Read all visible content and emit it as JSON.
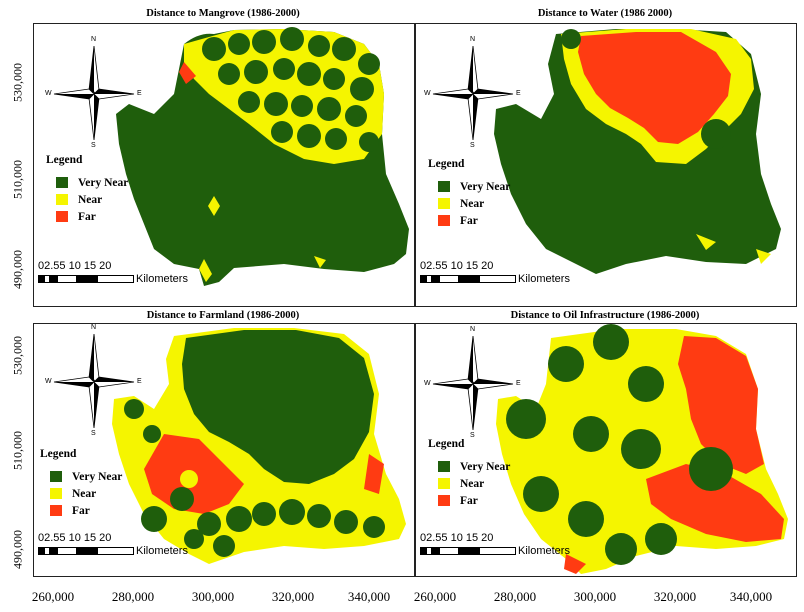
{
  "colors": {
    "very_near": "#1f5e0c",
    "near": "#f5f500",
    "far": "#ff3b12"
  },
  "y_ticks": [
    "530,000",
    "510,000",
    "490,000"
  ],
  "x_ticks": [
    "260,000",
    "280,000",
    "300,000",
    "320,000",
    "340,000",
    "260,000",
    "280,000",
    "300,000",
    "320,000",
    "340,000"
  ],
  "compass": {
    "n": "N",
    "s": "S",
    "e": "E",
    "w": "W"
  },
  "legend": {
    "title": "Legend",
    "very_near": "Very Near",
    "near": "Near",
    "far": "Far"
  },
  "scale": {
    "numbers": "02.55 10 15 20",
    "unit": "Kilometers"
  },
  "panels": [
    {
      "title": "Distance to Mangrove (1986-2000)"
    },
    {
      "title": "Distance to Water (1986 2000)"
    },
    {
      "title": "Distance to Farmland (1986-2000)"
    },
    {
      "title": "Distance to Oil Infrastructure (1986-2000)"
    }
  ]
}
